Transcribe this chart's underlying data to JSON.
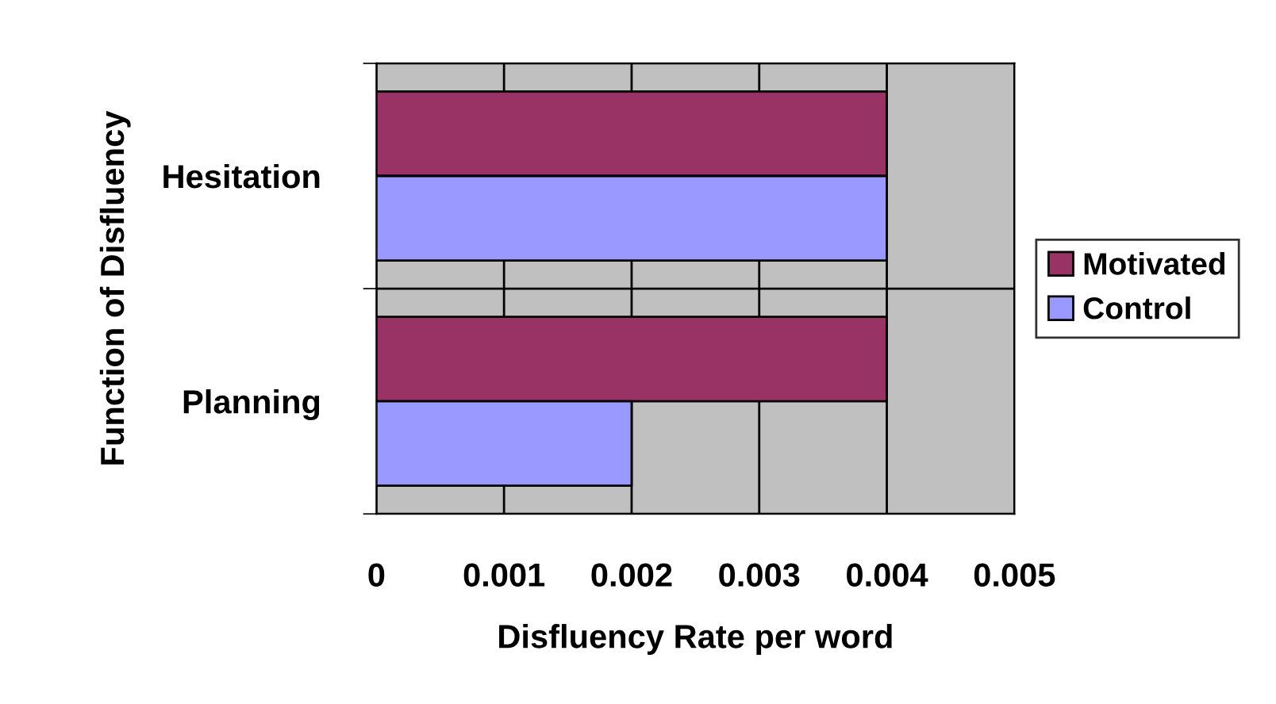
{
  "chart_data": {
    "type": "bar",
    "orientation": "horizontal",
    "categories": [
      "Hesitation",
      "Planning"
    ],
    "series": [
      {
        "name": "Motivated",
        "color": "#993366",
        "values": [
          0.004,
          0.004
        ]
      },
      {
        "name": "Control",
        "color": "#9999ff",
        "values": [
          0.004,
          0.002
        ]
      }
    ],
    "xlabel": "Disfluency Rate per word",
    "ylabel": "Function of Disfluency",
    "xlim": [
      0,
      0.005
    ],
    "xticks": [
      0,
      0.001,
      0.002,
      0.003,
      0.004,
      0.005
    ],
    "grid": true,
    "legend": "right"
  }
}
